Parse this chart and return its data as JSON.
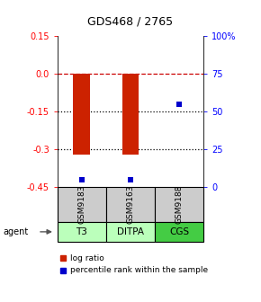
{
  "title": "GDS468 / 2765",
  "samples": [
    "GSM9183",
    "GSM9163",
    "GSM9188"
  ],
  "agents": [
    "T3",
    "DITPA",
    "CGS"
  ],
  "log_ratios": [
    -0.32,
    -0.32,
    0.0
  ],
  "percentile_ranks": [
    5,
    5,
    55
  ],
  "ylim_left": [
    -0.45,
    0.15
  ],
  "ylim_right": [
    0,
    100
  ],
  "yticks_left": [
    0.15,
    0.0,
    -0.15,
    -0.3,
    -0.45
  ],
  "yticks_right": [
    100,
    75,
    50,
    25,
    0
  ],
  "ytick_right_labels": [
    "100%",
    "75",
    "50",
    "25",
    "0"
  ],
  "hlines": [
    0.0,
    -0.15,
    -0.3
  ],
  "hline_styles": [
    "dashed",
    "dotted",
    "dotted"
  ],
  "hline_colors": [
    "#cc0000",
    "black",
    "black"
  ],
  "bar_color": "#cc2200",
  "dot_color": "#0000cc",
  "agent_colors": [
    "#bbffbb",
    "#bbffbb",
    "#44cc44"
  ],
  "sample_bg": "#cccccc",
  "legend_items": [
    "log ratio",
    "percentile rank within the sample"
  ],
  "legend_colors": [
    "#cc2200",
    "#0000cc"
  ],
  "bar_width": 0.35
}
